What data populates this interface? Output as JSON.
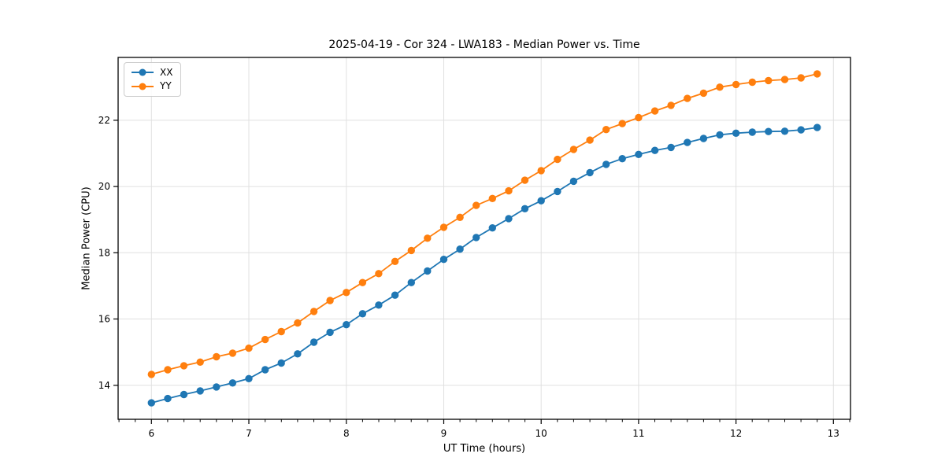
{
  "figure": {
    "background": "#ffffff"
  },
  "chart_data": {
    "type": "line",
    "title": "2025-04-19 - Cor 324 - LWA183 - Median Power vs. Time",
    "xlabel": "UT Time (hours)",
    "ylabel": "Median Power (CPU)",
    "xlim": [
      5.658,
      13.175
    ],
    "ylim": [
      12.973,
      23.897
    ],
    "x_ticks": [
      6,
      7,
      8,
      9,
      10,
      11,
      12,
      13
    ],
    "y_ticks": [
      14,
      16,
      18,
      20,
      22
    ],
    "x_minor_tick_interval_hours": 0.1667,
    "grid": true,
    "grid_color": "#e0e0e0",
    "spine_color": "#000000",
    "legend_position": "upper-left",
    "x": [
      6.0,
      6.167,
      6.333,
      6.5,
      6.667,
      6.833,
      7.0,
      7.167,
      7.333,
      7.5,
      7.667,
      7.833,
      8.0,
      8.167,
      8.333,
      8.5,
      8.667,
      8.833,
      9.0,
      9.167,
      9.333,
      9.5,
      9.667,
      9.833,
      10.0,
      10.167,
      10.333,
      10.5,
      10.667,
      10.833,
      11.0,
      11.167,
      11.333,
      11.5,
      11.667,
      11.833,
      12.0,
      12.167,
      12.333,
      12.5,
      12.667,
      12.833
    ],
    "series": [
      {
        "name": "XX",
        "color": "#1f77b4",
        "marker": "circle",
        "values": [
          13.47,
          13.6,
          13.72,
          13.83,
          13.95,
          14.07,
          14.2,
          14.47,
          14.67,
          14.95,
          15.3,
          15.6,
          15.83,
          16.16,
          16.42,
          16.72,
          17.1,
          17.45,
          17.8,
          18.11,
          18.46,
          18.75,
          19.03,
          19.33,
          19.57,
          19.85,
          20.16,
          20.42,
          20.67,
          20.84,
          20.97,
          21.09,
          21.18,
          21.33,
          21.45,
          21.56,
          21.61,
          21.64,
          21.66,
          21.67,
          21.71,
          21.78
        ]
      },
      {
        "name": "YY",
        "color": "#ff7f0e",
        "marker": "circle",
        "values": [
          14.33,
          14.47,
          14.59,
          14.7,
          14.86,
          14.97,
          15.12,
          15.38,
          15.62,
          15.88,
          16.23,
          16.56,
          16.8,
          17.1,
          17.37,
          17.74,
          18.07,
          18.44,
          18.77,
          19.07,
          19.43,
          19.64,
          19.87,
          20.19,
          20.48,
          20.82,
          21.12,
          21.4,
          21.72,
          21.9,
          22.08,
          22.28,
          22.45,
          22.66,
          22.82,
          23.0,
          23.08,
          23.15,
          23.2,
          23.23,
          23.28,
          23.4
        ]
      }
    ]
  }
}
